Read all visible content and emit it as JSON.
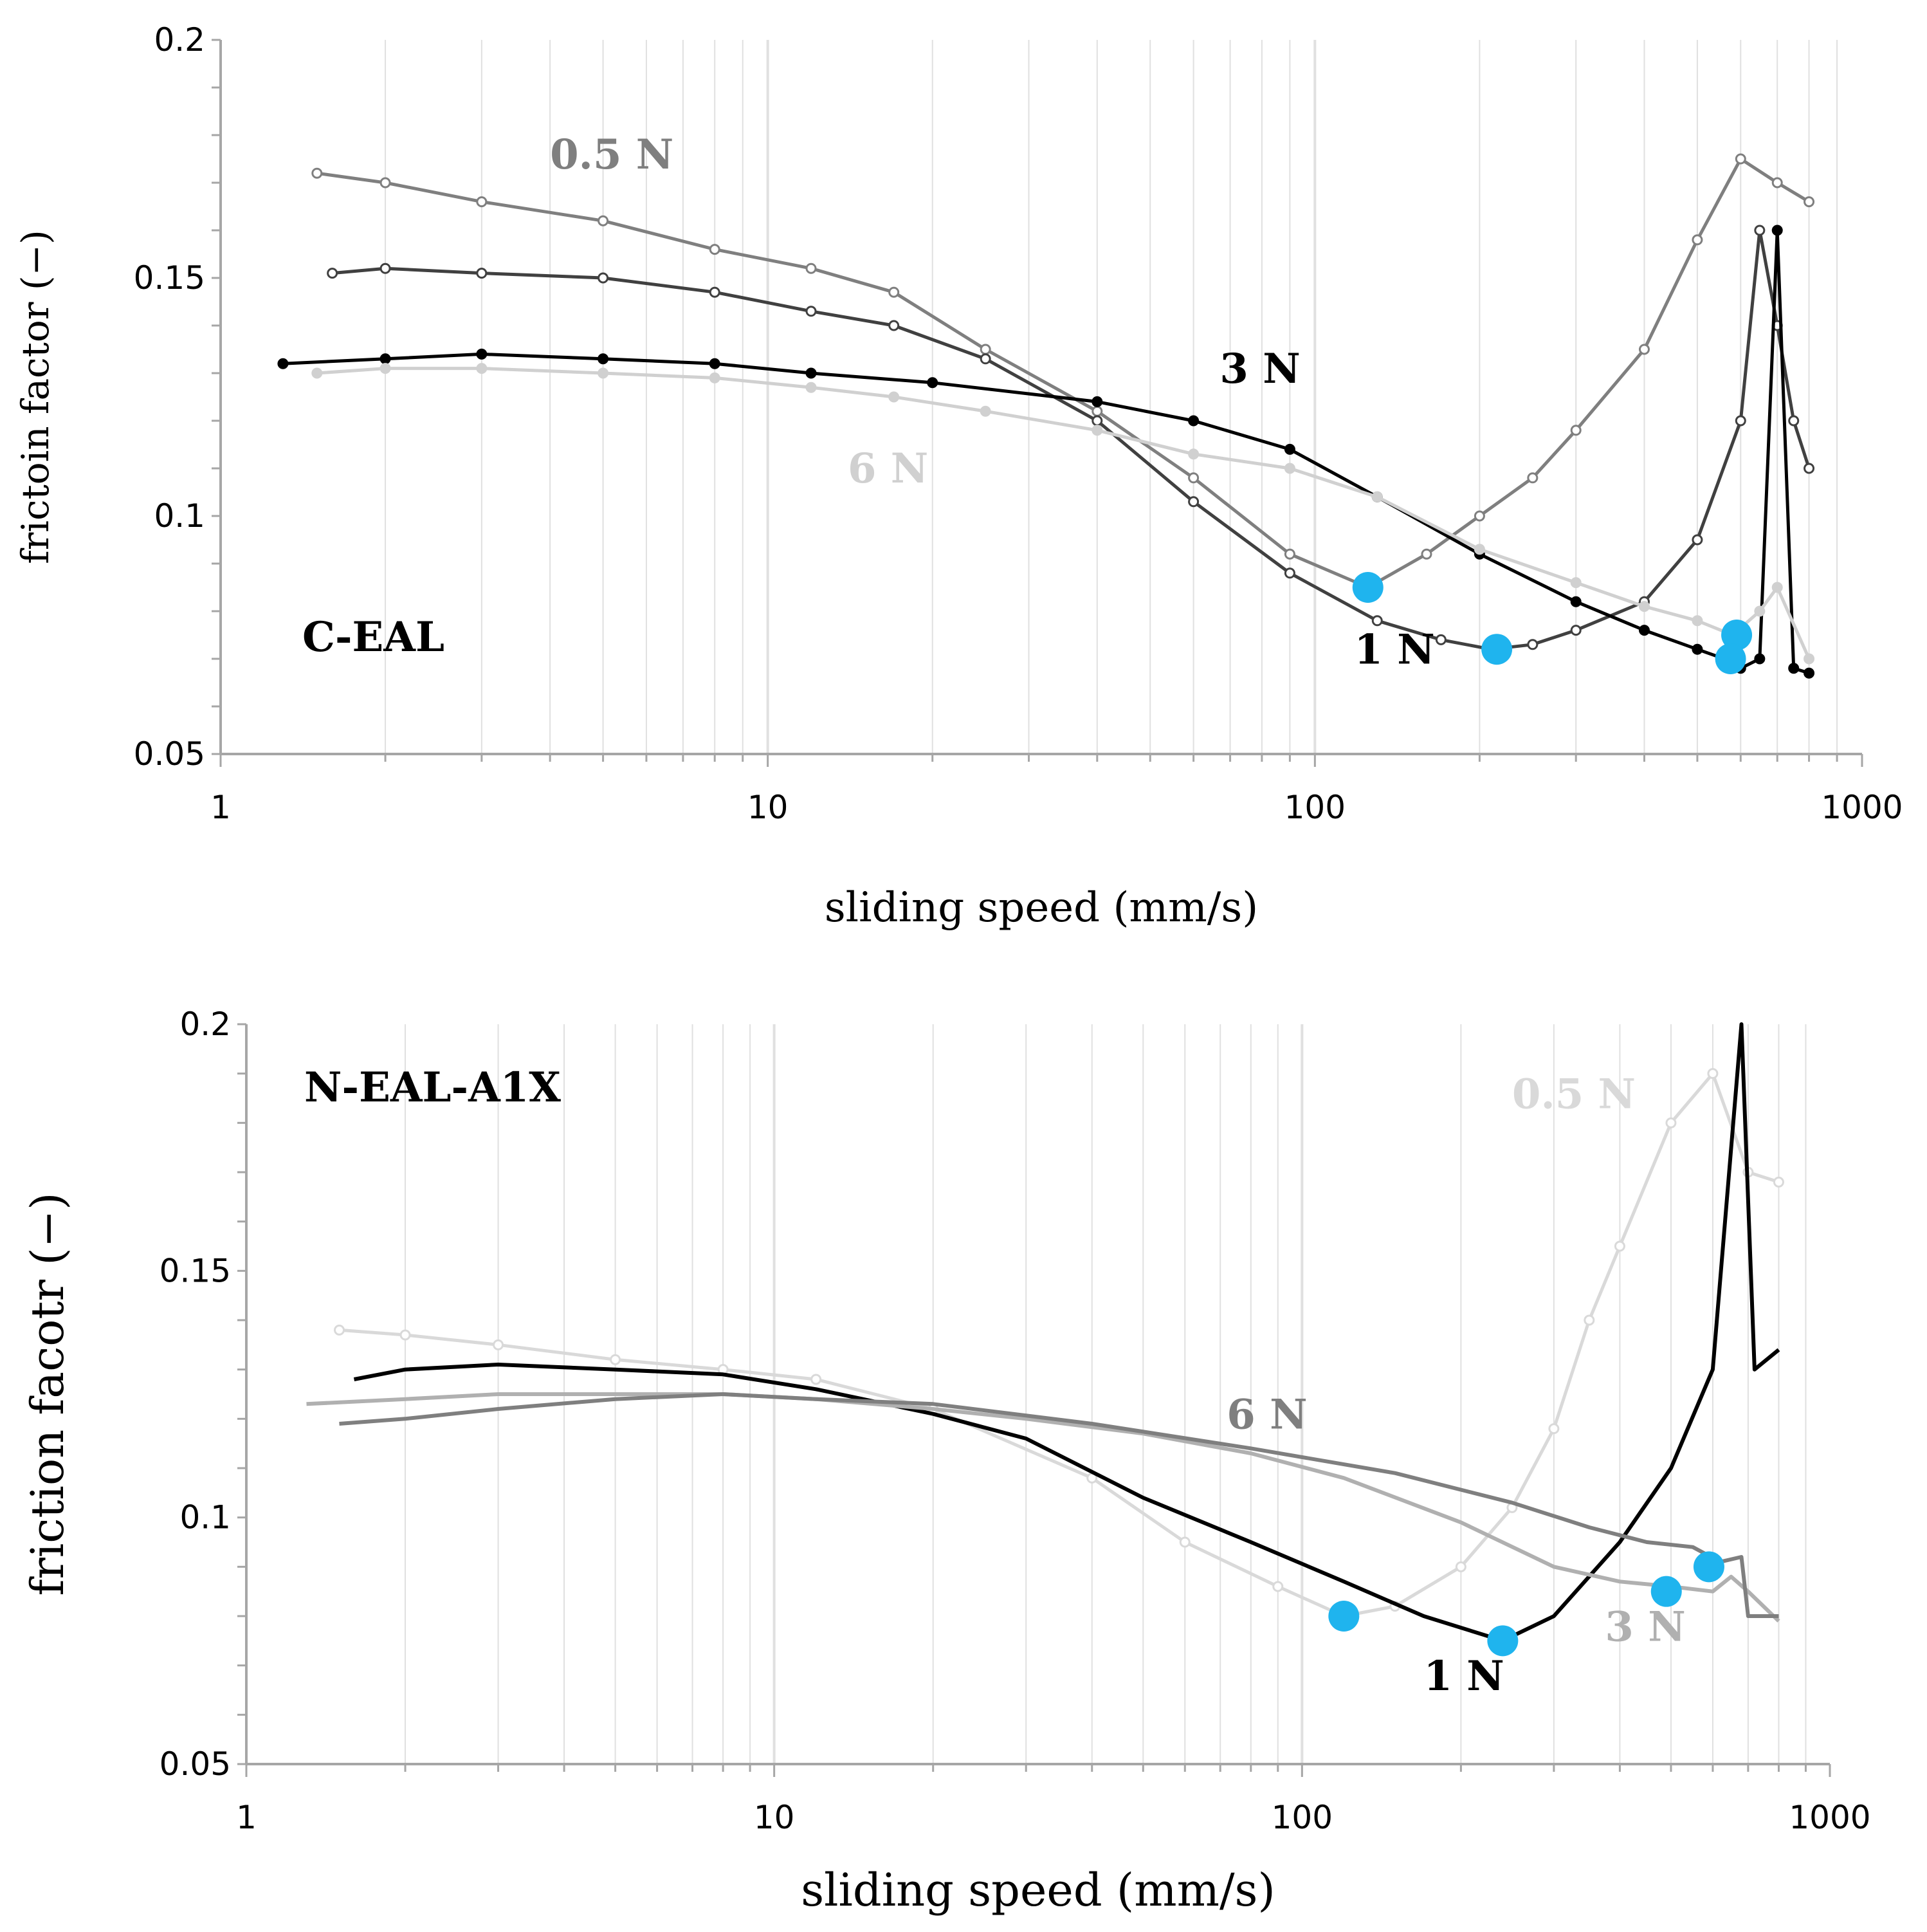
{
  "chart_data": [
    {
      "type": "line",
      "panel_label": "C-EAL",
      "xlabel": "sliding speed (mm/s)",
      "ylabel": "frictoin factor (−)",
      "xscale": "log",
      "xlim": [
        1,
        1000
      ],
      "ylim": [
        0.05,
        0.2
      ],
      "x_ticks": [
        "1",
        "10",
        "100",
        "1000"
      ],
      "y_ticks": [
        "0.05",
        "0.1",
        "0.15",
        "0.2"
      ],
      "grid": true,
      "series": [
        {
          "name": "0.5 N",
          "color": "#7f7f7f",
          "marker": "open-circle",
          "x": [
            1.5,
            2,
            3,
            5,
            8,
            12,
            17,
            25,
            40,
            60,
            90,
            125,
            160,
            200,
            250,
            300,
            400,
            500,
            600,
            700,
            800
          ],
          "y": [
            0.172,
            0.17,
            0.166,
            0.162,
            0.156,
            0.152,
            0.147,
            0.135,
            0.122,
            0.108,
            0.092,
            0.085,
            0.092,
            0.1,
            0.108,
            0.118,
            0.135,
            0.158,
            0.175,
            0.17,
            0.166
          ]
        },
        {
          "name": "1 N",
          "color": "#404040",
          "marker": "open-circle",
          "x": [
            1.6,
            2,
            3,
            5,
            8,
            12,
            17,
            25,
            40,
            60,
            90,
            130,
            170,
            210,
            250,
            300,
            400,
            500,
            600,
            650,
            700,
            750,
            800
          ],
          "y": [
            0.151,
            0.152,
            0.151,
            0.15,
            0.147,
            0.143,
            0.14,
            0.133,
            0.12,
            0.103,
            0.088,
            0.078,
            0.074,
            0.072,
            0.073,
            0.076,
            0.082,
            0.095,
            0.12,
            0.16,
            0.14,
            0.12,
            0.11
          ]
        },
        {
          "name": "3 N",
          "color": "#000000",
          "marker": "filled-circle",
          "x": [
            1.3,
            2,
            3,
            5,
            8,
            12,
            20,
            40,
            60,
            90,
            130,
            200,
            300,
            400,
            500,
            560,
            600,
            650,
            700,
            750,
            800
          ],
          "y": [
            0.132,
            0.133,
            0.134,
            0.133,
            0.132,
            0.13,
            0.128,
            0.124,
            0.12,
            0.114,
            0.104,
            0.092,
            0.082,
            0.076,
            0.072,
            0.07,
            0.068,
            0.07,
            0.16,
            0.068,
            0.067
          ]
        },
        {
          "name": "6 N",
          "color": "#d0d0d0",
          "marker": "filled-circle",
          "x": [
            1.5,
            2,
            3,
            5,
            8,
            12,
            17,
            25,
            40,
            60,
            90,
            130,
            200,
            300,
            400,
            500,
            580,
            650,
            700,
            800
          ],
          "y": [
            0.13,
            0.131,
            0.131,
            0.13,
            0.129,
            0.127,
            0.125,
            0.122,
            0.118,
            0.113,
            0.11,
            0.104,
            0.093,
            0.086,
            0.081,
            0.078,
            0.075,
            0.08,
            0.085,
            0.07
          ]
        }
      ],
      "markers": [
        {
          "x": 125,
          "y": 0.085
        },
        {
          "x": 215,
          "y": 0.072
        },
        {
          "x": 590,
          "y": 0.075
        },
        {
          "x": 575,
          "y": 0.07
        }
      ],
      "annotations": [
        {
          "text": "0.5 N",
          "x": 4,
          "y": 0.173,
          "color": "#7f7f7f"
        },
        {
          "text": "3 N",
          "x": 67,
          "y": 0.128,
          "color": "#000000"
        },
        {
          "text": "6 N",
          "x": 14,
          "y": 0.107,
          "color": "#d0d0d0"
        },
        {
          "text": "1 N",
          "x": 118,
          "y": 0.069,
          "color": "#000000"
        }
      ]
    },
    {
      "type": "line",
      "panel_label": "N-EAL-A1X",
      "xlabel": "sliding speed (mm/s)",
      "ylabel": "friction facotr (−)",
      "xscale": "log",
      "xlim": [
        1,
        1000
      ],
      "ylim": [
        0.05,
        0.2
      ],
      "x_ticks": [
        "1",
        "10",
        "100",
        "1000"
      ],
      "y_ticks": [
        "0.05",
        "0.1",
        "0.15",
        "0.2"
      ],
      "grid": true,
      "series": [
        {
          "name": "0.5 N",
          "color": "#d9d9d9",
          "marker": "open-circle",
          "x": [
            1.5,
            2,
            3,
            5,
            8,
            12,
            20,
            40,
            60,
            90,
            120,
            150,
            200,
            250,
            300,
            350,
            400,
            500,
            600,
            700,
            800
          ],
          "y": [
            0.138,
            0.137,
            0.135,
            0.132,
            0.13,
            0.128,
            0.122,
            0.108,
            0.095,
            0.086,
            0.08,
            0.082,
            0.09,
            0.102,
            0.118,
            0.14,
            0.155,
            0.18,
            0.19,
            0.17,
            0.168
          ]
        },
        {
          "name": "1 N",
          "color": "#000000",
          "marker": "none",
          "x": [
            1.6,
            2,
            3,
            5,
            8,
            12,
            20,
            30,
            50,
            80,
            120,
            170,
            240,
            300,
            400,
            500,
            600,
            680,
            720,
            800
          ],
          "y": [
            0.128,
            0.13,
            0.131,
            0.13,
            0.129,
            0.126,
            0.121,
            0.116,
            0.104,
            0.095,
            0.087,
            0.08,
            0.075,
            0.08,
            0.095,
            0.11,
            0.13,
            0.2,
            0.13,
            0.134
          ]
        },
        {
          "name": "3 N",
          "color": "#b0b0b0",
          "marker": "none",
          "x": [
            1.3,
            2,
            3,
            5,
            8,
            12,
            20,
            30,
            50,
            80,
            120,
            200,
            300,
            400,
            500,
            600,
            650,
            700,
            800
          ],
          "y": [
            0.123,
            0.124,
            0.125,
            0.125,
            0.125,
            0.124,
            0.122,
            0.12,
            0.117,
            0.113,
            0.108,
            0.099,
            0.09,
            0.087,
            0.086,
            0.085,
            0.088,
            0.085,
            0.079
          ]
        },
        {
          "name": "6 N",
          "color": "#7f7f7f",
          "marker": "none",
          "x": [
            1.5,
            2,
            3,
            5,
            8,
            12,
            20,
            40,
            80,
            150,
            250,
            350,
            450,
            550,
            620,
            680,
            700,
            750,
            800
          ],
          "y": [
            0.119,
            0.12,
            0.122,
            0.124,
            0.125,
            0.124,
            0.123,
            0.119,
            0.114,
            0.109,
            0.103,
            0.098,
            0.095,
            0.094,
            0.091,
            0.092,
            0.08,
            0.08,
            0.08
          ]
        }
      ],
      "markers": [
        {
          "x": 120,
          "y": 0.08
        },
        {
          "x": 240,
          "y": 0.075
        },
        {
          "x": 490,
          "y": 0.085
        },
        {
          "x": 590,
          "y": 0.09
        }
      ],
      "annotations": [
        {
          "text": "0.5 N",
          "x": 250,
          "y": 0.183,
          "color": "#d9d9d9"
        },
        {
          "text": "6 N",
          "x": 72,
          "y": 0.118,
          "color": "#7f7f7f"
        },
        {
          "text": "3 N",
          "x": 375,
          "y": 0.075,
          "color": "#b0b0b0"
        },
        {
          "text": "1 N",
          "x": 170,
          "y": 0.065,
          "color": "#000000"
        }
      ]
    }
  ],
  "colors": {
    "highlight_marker": "#1fb4ee",
    "grid": "#e0e0e0",
    "axis": "#a6a6a6"
  }
}
